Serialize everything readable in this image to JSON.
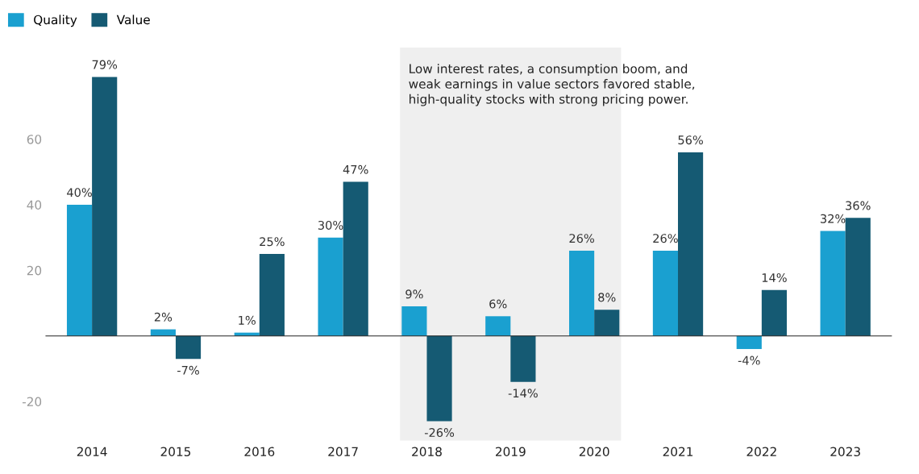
{
  "chart_data": {
    "type": "bar",
    "categories": [
      "2014",
      "2015",
      "2016",
      "2017",
      "2018",
      "2019",
      "2020",
      "2021",
      "2022",
      "2023"
    ],
    "series": [
      {
        "name": "Quality",
        "color": "#1aa0d0",
        "values": [
          40,
          2,
          1,
          30,
          9,
          6,
          26,
          26,
          -4,
          32
        ],
        "value_labels": [
          "40%",
          "2%",
          "1%",
          "30%",
          "9%",
          "6%",
          "26%",
          "26%",
          "-4%",
          "32%"
        ]
      },
      {
        "name": "Value",
        "color": "#155a73",
        "values": [
          79,
          -7,
          25,
          47,
          -26,
          -14,
          8,
          56,
          14,
          36
        ],
        "value_labels": [
          "79%",
          "-7%",
          "25%",
          "47%",
          "-26%",
          "-14%",
          "8%",
          "56%",
          "14%",
          "36%"
        ]
      }
    ],
    "ylim": [
      -32,
      88
    ],
    "yticks": [
      -20,
      20,
      40,
      60
    ],
    "bands": [
      {
        "axis": "x",
        "from": "2018",
        "to": "2020",
        "color": "#efefef",
        "label": "Low interest rates, a consumption boom, and weak earnings in value sectors favored stable, high-quality stocks with strong pricing power."
      }
    ],
    "legend": "top left",
    "grid": false
  }
}
